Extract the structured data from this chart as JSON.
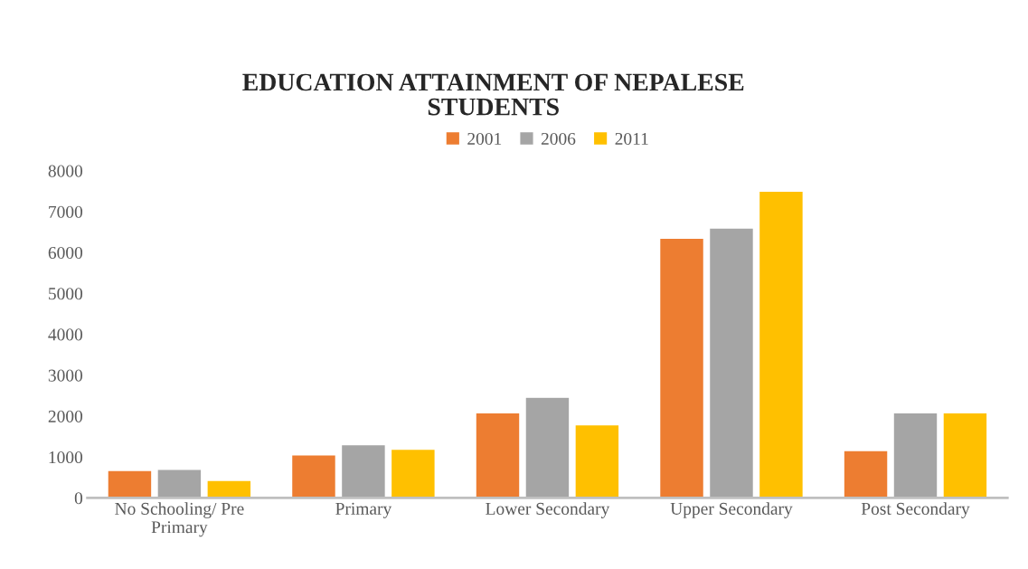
{
  "chart_data": {
    "type": "bar",
    "title": "EDUCATION ATTAINMENT OF NEPALESE\nSTUDENTS",
    "categories": [
      "No Schooling/ Pre\nPrimary",
      "Primary",
      "Lower Secondary",
      "Upper Secondary",
      "Post Secondary"
    ],
    "series": [
      {
        "name": "2001",
        "color": "#ed7d31",
        "values": [
          670,
          1050,
          2080,
          6350,
          1160
        ]
      },
      {
        "name": "2006",
        "color": "#a5a5a5",
        "values": [
          700,
          1300,
          2460,
          6600,
          2080
        ]
      },
      {
        "name": "2011",
        "color": "#ffc000",
        "values": [
          430,
          1190,
          1790,
          7500,
          2080
        ]
      }
    ],
    "ylim": [
      0,
      8000
    ],
    "yticks": [
      0,
      1000,
      2000,
      3000,
      4000,
      5000,
      6000,
      7000,
      8000
    ],
    "grid": false,
    "legend": "top"
  }
}
